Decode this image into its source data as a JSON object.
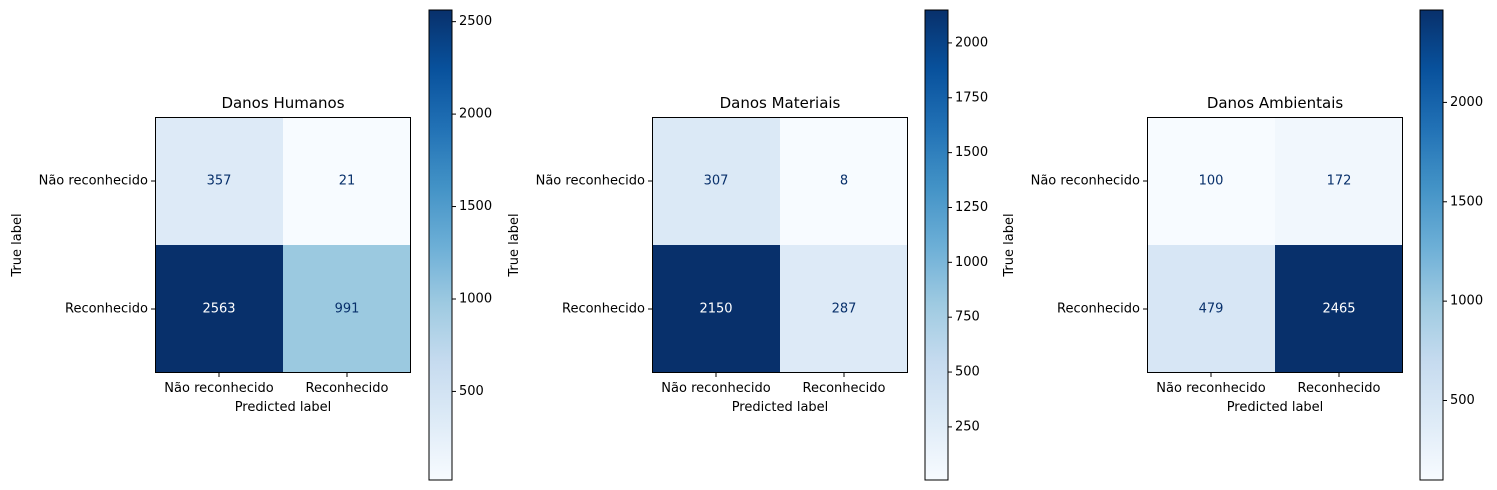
{
  "chart_data": [
    {
      "type": "heatmap",
      "title": "Danos Humanos",
      "xlabel": "Predicted label",
      "ylabel": "True label",
      "x_categories": [
        "Não reconhecido",
        "Reconhecido"
      ],
      "y_categories": [
        "Não reconhecido",
        "Reconhecido"
      ],
      "values": [
        [
          357,
          21
        ],
        [
          2563,
          991
        ]
      ],
      "colormap": "Blues",
      "colorbar": {
        "min": 21,
        "max": 2563,
        "ticks": [
          500,
          1000,
          1500,
          2000,
          2500
        ]
      }
    },
    {
      "type": "heatmap",
      "title": "Danos Materiais",
      "xlabel": "Predicted label",
      "ylabel": "True label",
      "x_categories": [
        "Não reconhecido",
        "Reconhecido"
      ],
      "y_categories": [
        "Não reconhecido",
        "Reconhecido"
      ],
      "values": [
        [
          307,
          8
        ],
        [
          2150,
          287
        ]
      ],
      "colormap": "Blues",
      "colorbar": {
        "min": 8,
        "max": 2150,
        "ticks": [
          250,
          500,
          750,
          1000,
          1250,
          1500,
          1750,
          2000
        ]
      }
    },
    {
      "type": "heatmap",
      "title": "Danos Ambientais",
      "xlabel": "Predicted label",
      "ylabel": "True label",
      "x_categories": [
        "Não reconhecido",
        "Reconhecido"
      ],
      "y_categories": [
        "Não reconhecido",
        "Reconhecido"
      ],
      "values": [
        [
          100,
          172
        ],
        [
          479,
          2465
        ]
      ],
      "colormap": "Blues",
      "colorbar": {
        "min": 100,
        "max": 2465,
        "ticks": [
          500,
          1000,
          1500,
          2000
        ]
      }
    }
  ]
}
